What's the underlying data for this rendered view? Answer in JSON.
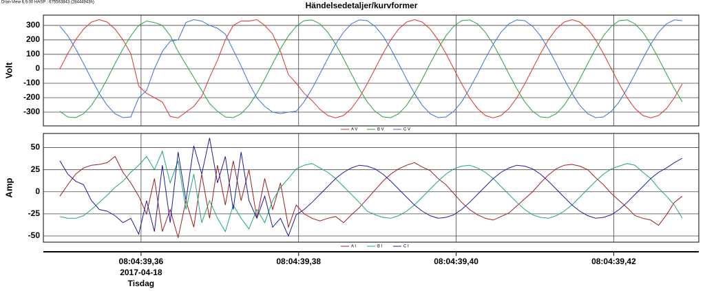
{
  "app_info": "Dran-View 6.9.00 HASP : 675563843 (28444943h)",
  "chart_data": [
    {
      "type": "line",
      "title": "Händelsedetaljer/kurvformer",
      "ylabel": "Volt",
      "grid": true,
      "legend": "bottom",
      "xlim": [
        39.3476,
        39.4308
      ],
      "ylim": [
        -395,
        371
      ],
      "yticks": [
        300,
        200,
        100,
        0,
        -100,
        -200,
        -300
      ],
      "x": [
        39.3497,
        39.3507,
        39.3517,
        39.3527,
        39.3537,
        39.3547,
        39.3557,
        39.3567,
        39.3577,
        39.3587,
        39.3597,
        39.3607,
        39.3617,
        39.3627,
        39.3637,
        39.3647,
        39.3657,
        39.3667,
        39.3677,
        39.3687,
        39.3697,
        39.3707,
        39.3717,
        39.3727,
        39.3737,
        39.3747,
        39.3757,
        39.3767,
        39.3777,
        39.3787,
        39.3797,
        39.3807,
        39.3817,
        39.3827,
        39.3837,
        39.3847,
        39.3857,
        39.3867,
        39.3877,
        39.3887,
        39.3897,
        39.3907,
        39.3917,
        39.3927,
        39.3937,
        39.3947,
        39.3957,
        39.3967,
        39.3977,
        39.3987,
        39.3997,
        39.4007,
        39.4017,
        39.4027,
        39.4037,
        39.4047,
        39.4057,
        39.4067,
        39.4077,
        39.4087,
        39.4097,
        39.4107,
        39.4117,
        39.4127,
        39.4137,
        39.4147,
        39.4157,
        39.4167,
        39.4177,
        39.4187,
        39.4197,
        39.4207,
        39.4217,
        39.4227,
        39.4237,
        39.4247,
        39.4257,
        39.4267,
        39.4277,
        39.4287
      ],
      "series": [
        {
          "name": "A V",
          "color": "#e0312b",
          "values": [
            0,
            105,
            200,
            275,
            323,
            340,
            323,
            275,
            200,
            105,
            -120,
            -170,
            -200,
            -230,
            -330,
            -340,
            -300,
            -260,
            -190,
            -60,
            60,
            200,
            300,
            330,
            330,
            340,
            300,
            240,
            120,
            -40,
            -100,
            -170,
            -220,
            -280,
            -323,
            -340,
            -323,
            -275,
            -200,
            -105,
            0,
            105,
            200,
            275,
            323,
            340,
            323,
            275,
            200,
            105,
            0,
            -105,
            -200,
            -275,
            -323,
            -340,
            -323,
            -275,
            -200,
            -105,
            0,
            105,
            200,
            275,
            323,
            340,
            323,
            275,
            200,
            105,
            0,
            -105,
            -200,
            -275,
            -323,
            -340,
            -323,
            -275,
            -200,
            -105
          ]
        },
        {
          "name": "B V",
          "color": "#2ea043",
          "values": [
            -294,
            -333,
            -338,
            -311,
            -253,
            -170,
            -71,
            36,
            138,
            228,
            300,
            330,
            320,
            300,
            230,
            120,
            30,
            -60,
            -150,
            -240,
            -294,
            -333,
            -338,
            -311,
            -253,
            -170,
            -71,
            36,
            138,
            228,
            294,
            333,
            338,
            311,
            253,
            170,
            71,
            -36,
            -138,
            -228,
            -294,
            -333,
            -338,
            -311,
            -253,
            -170,
            -71,
            36,
            138,
            228,
            294,
            333,
            338,
            311,
            253,
            170,
            71,
            -36,
            -138,
            -228,
            -294,
            -333,
            -338,
            -311,
            -253,
            -170,
            -71,
            36,
            138,
            228,
            294,
            333,
            338,
            311,
            253,
            170,
            71,
            -36,
            -138,
            -228
          ]
        },
        {
          "name": "C V",
          "color": "#3b6fe0",
          "values": [
            294,
            228,
            138,
            36,
            -71,
            -170,
            -253,
            -311,
            -338,
            -333,
            -200,
            -150,
            0,
            120,
            190,
            200,
            320,
            340,
            330,
            300,
            280,
            240,
            130,
            20,
            -100,
            -200,
            -260,
            -300,
            -310,
            -300,
            -294,
            -228,
            -138,
            -36,
            71,
            170,
            253,
            311,
            338,
            333,
            294,
            228,
            138,
            36,
            -71,
            -170,
            -253,
            -311,
            -338,
            -333,
            -294,
            -228,
            -138,
            -36,
            71,
            170,
            253,
            311,
            338,
            333,
            294,
            228,
            138,
            36,
            -71,
            -170,
            -253,
            -311,
            -338,
            -333,
            -294,
            -228,
            -138,
            -36,
            71,
            170,
            253,
            311,
            338,
            333
          ]
        }
      ]
    },
    {
      "type": "line",
      "ylabel": "Amp",
      "grid": true,
      "legend": "bottom",
      "xlim": [
        39.3476,
        39.4308
      ],
      "ylim": [
        -57,
        66
      ],
      "yticks": [
        50,
        25,
        0,
        -25,
        -50
      ],
      "xticks": [
        {
          "value": 39.36,
          "label": "08:04:39,36"
        },
        {
          "value": 39.38,
          "label": "08:04:39,38"
        },
        {
          "value": 39.4,
          "label": "08:04:39,40"
        },
        {
          "value": 39.42,
          "label": "08:04:39,42"
        }
      ],
      "x_date": "2017-04-18",
      "x_weekday": "Tisdag",
      "x": [
        39.3497,
        39.3507,
        39.3517,
        39.3527,
        39.3537,
        39.3547,
        39.3557,
        39.3567,
        39.3577,
        39.3587,
        39.3597,
        39.3607,
        39.3617,
        39.3627,
        39.3637,
        39.3647,
        39.3657,
        39.3667,
        39.3677,
        39.3687,
        39.3697,
        39.3707,
        39.3717,
        39.3727,
        39.3737,
        39.3747,
        39.3757,
        39.3767,
        39.3777,
        39.3787,
        39.3797,
        39.3807,
        39.3817,
        39.3827,
        39.3837,
        39.3847,
        39.3857,
        39.3867,
        39.3877,
        39.3887,
        39.3897,
        39.3907,
        39.3917,
        39.3927,
        39.3937,
        39.3947,
        39.3957,
        39.3967,
        39.3977,
        39.3987,
        39.3997,
        39.4007,
        39.4017,
        39.4027,
        39.4037,
        39.4047,
        39.4057,
        39.4067,
        39.4077,
        39.4087,
        39.4097,
        39.4107,
        39.4117,
        39.4127,
        39.4137,
        39.4147,
        39.4157,
        39.4167,
        39.4177,
        39.4187,
        39.4197,
        39.4207,
        39.4217,
        39.4227,
        39.4237,
        39.4247,
        39.4257,
        39.4267,
        39.4277,
        39.4287
      ],
      "series": [
        {
          "name": "A I",
          "color": "#a01e1e",
          "values": [
            -5,
            8,
            20,
            27,
            30,
            31,
            33,
            40,
            22,
            10,
            -5,
            -25,
            15,
            -45,
            -20,
            -52,
            -10,
            -40,
            20,
            -30,
            30,
            -15,
            35,
            -10,
            25,
            -30,
            15,
            -20,
            10,
            -40,
            -15,
            -25,
            -30,
            -33,
            -30,
            -28,
            -35,
            -26,
            -18,
            -8,
            2,
            12,
            20,
            26,
            30,
            33,
            28,
            24,
            15,
            8,
            -2,
            -12,
            -20,
            -26,
            -30,
            -32,
            -28,
            -24,
            -16,
            -8,
            0,
            10,
            19,
            26,
            30,
            31,
            29,
            25,
            16,
            8,
            -2,
            -10,
            -18,
            -27,
            -30,
            -32,
            -38,
            -26,
            -12,
            -5
          ]
        },
        {
          "name": "B I",
          "color": "#1fa774",
          "values": [
            -28,
            -30,
            -30,
            -27,
            -20,
            -12,
            -4,
            5,
            12,
            22,
            30,
            40,
            25,
            46,
            10,
            35,
            -20,
            20,
            -35,
            -10,
            -30,
            -45,
            -15,
            -30,
            -42,
            -20,
            -35,
            -10,
            5,
            15,
            26,
            30,
            32,
            27,
            22,
            15,
            6,
            -3,
            -12,
            -22,
            -26,
            -29,
            -30,
            -27,
            -22,
            -15,
            -6,
            3,
            12,
            20,
            26,
            29,
            30,
            27,
            22,
            15,
            6,
            -3,
            -12,
            -20,
            -26,
            -29,
            -30,
            -27,
            -22,
            -15,
            -6,
            3,
            12,
            20,
            26,
            29,
            32,
            30,
            22,
            15,
            4,
            -5,
            -15,
            -30
          ]
        },
        {
          "name": "C I",
          "color": "#1c1c9c",
          "values": [
            35,
            20,
            12,
            8,
            -10,
            -20,
            -22,
            -27,
            -35,
            -30,
            -48,
            -10,
            -45,
            30,
            -35,
            45,
            -10,
            52,
            20,
            61,
            10,
            40,
            -20,
            45,
            -10,
            -30,
            -5,
            -40,
            -30,
            -50,
            -26,
            -20,
            -12,
            -3,
            6,
            15,
            22,
            27,
            30,
            29,
            26,
            20,
            12,
            3,
            -6,
            -15,
            -22,
            -27,
            -30,
            -29,
            -26,
            -20,
            -12,
            -3,
            6,
            15,
            22,
            27,
            30,
            29,
            26,
            20,
            12,
            3,
            -6,
            -15,
            -22,
            -27,
            -30,
            -29,
            -26,
            -20,
            -12,
            -3,
            6,
            15,
            22,
            27,
            33,
            38
          ]
        }
      ]
    }
  ]
}
